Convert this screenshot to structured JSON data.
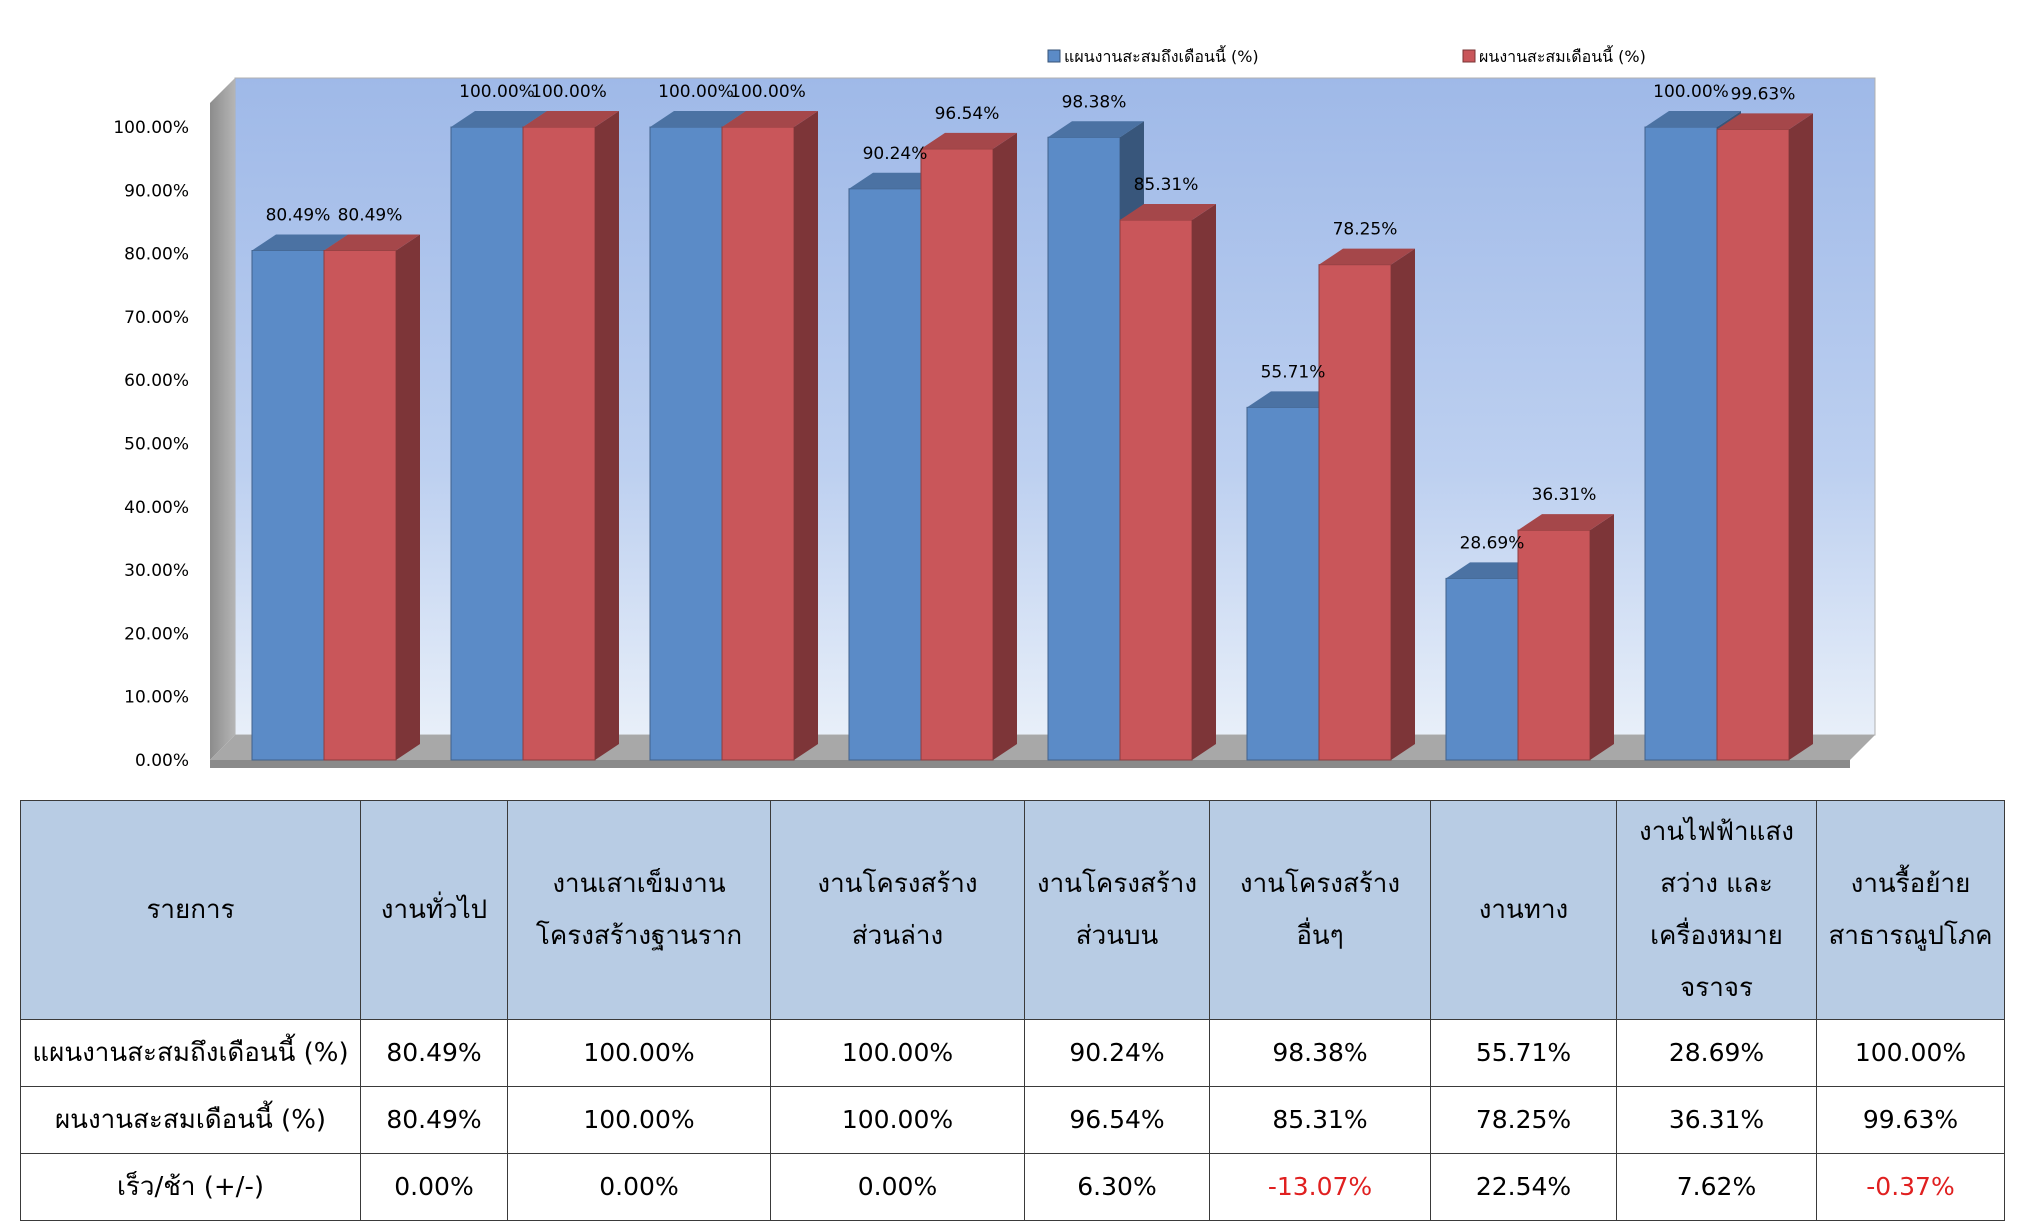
{
  "chart_data": {
    "type": "bar",
    "categories": [
      "งานทั่วไป",
      "งานเสาเข็มงานโครงสร้างฐานราก",
      "งานโครงสร้างส่วนล่าง",
      "งานโครงสร้างส่วนบน",
      "งานโครงสร้างอื่นๆ",
      "งานทาง",
      "งานไฟฟ้าแสงสว่าง และเครื่องหมายจราจร",
      "งานรื้อย้ายสาธารณูปโภค"
    ],
    "series": [
      {
        "name": "แผนงานสะสมถึงเดือนนี้ (%)",
        "values": [
          80.49,
          100.0,
          100.0,
          90.24,
          98.38,
          55.71,
          28.69,
          100.0
        ],
        "labels": [
          "80.49%",
          "100.00%",
          "100.00%",
          "90.24%",
          "98.38%",
          "55.71%",
          "28.69%",
          "100.00%"
        ]
      },
      {
        "name": "ผนงานสะสมเดือนนี้ (%)",
        "values": [
          80.49,
          100.0,
          100.0,
          96.54,
          85.31,
          78.25,
          36.31,
          99.63
        ],
        "labels": [
          "80.49%",
          "100.00%",
          "100.00%",
          "96.54%",
          "85.31%",
          "78.25%",
          "36.31%",
          "99.63%"
        ]
      }
    ],
    "yticks": [
      "0.00%",
      "10.00%",
      "20.00%",
      "30.00%",
      "40.00%",
      "50.00%",
      "60.00%",
      "70.00%",
      "80.00%",
      "90.00%",
      "100.00%"
    ],
    "ylim": [
      0,
      100
    ],
    "legend_position": "top-right",
    "colors": {
      "series1": "#5b8bc7",
      "series2": "#c9565a",
      "background": "#a9c2ea"
    }
  },
  "table": {
    "header": [
      "รายการ",
      "งานทั่วไป",
      "งานเสาเข็มงาน\nโครงสร้างฐานราก",
      "งานโครงสร้าง\nส่วนล่าง",
      "งานโครงสร้าง\nส่วนบน",
      "งานโครงสร้าง\nอื่นๆ",
      "งานทาง",
      "งานไฟฟ้าแสง\nสว่าง และ\nเครื่องหมาย\nจราจร",
      "งานรื้อย้าย\nสาธารณูปโภค"
    ],
    "rows": [
      {
        "label": "แผนงานสะสมถึงเดือนนี้ (%)",
        "cells": [
          "80.49%",
          "100.00%",
          "100.00%",
          "90.24%",
          "98.38%",
          "55.71%",
          "28.69%",
          "100.00%"
        ]
      },
      {
        "label": "ผนงานสะสมเดือนนี้ (%)",
        "cells": [
          "80.49%",
          "100.00%",
          "100.00%",
          "96.54%",
          "85.31%",
          "78.25%",
          "36.31%",
          "99.63%"
        ]
      },
      {
        "label": "เร็ว/ช้า (+/-)",
        "cells": [
          "0.00%",
          "0.00%",
          "0.00%",
          "6.30%",
          "-13.07%",
          "22.54%",
          "7.62%",
          "-0.37%"
        ]
      }
    ],
    "negative_color": "#e02020"
  }
}
